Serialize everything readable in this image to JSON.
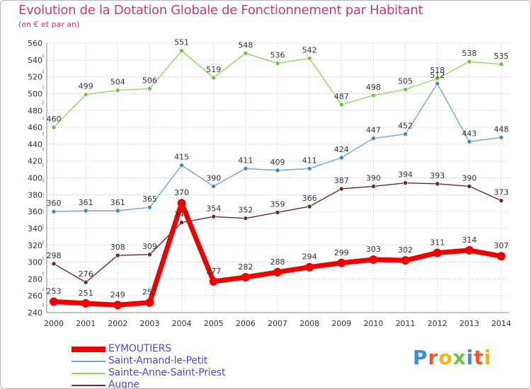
{
  "title": "Evolution de la Dotation Globale de Fonctionnement par Habitant",
  "subtitle": "(en € et par an)",
  "logo_text": "Proxiti",
  "colors": {
    "title": "#cc3a6e",
    "legend_text": "#4c4cc8",
    "grid": "#d8d8d8",
    "axis_text": "#333333"
  },
  "chart_data": {
    "type": "line",
    "title": "Evolution de la Dotation Globale de Fonctionnement par Habitant",
    "subtitle": "(en € et par an)",
    "xlabel": "",
    "ylabel": "",
    "x": [
      "2000",
      "2001",
      "2002",
      "2003",
      "2004",
      "2005",
      "2006",
      "2007",
      "2008",
      "2009",
      "2010",
      "2011",
      "2012",
      "2013",
      "2014"
    ],
    "ylim": [
      240,
      560
    ],
    "yticks": [
      240,
      260,
      280,
      300,
      320,
      340,
      360,
      380,
      400,
      420,
      440,
      460,
      480,
      500,
      520,
      540,
      560
    ],
    "grid": true,
    "legend_position": "bottom-left",
    "series": [
      {
        "name": "EYMOUTIERS",
        "color": "#ee0000",
        "marker": "#ee0000",
        "width": 7,
        "radius": 6,
        "values": [
          253,
          251,
          249,
          252,
          370,
          277,
          282,
          288,
          294,
          299,
          303,
          302,
          311,
          314,
          307
        ]
      },
      {
        "name": "Saint-Amand-le-Petit",
        "color": "#6ea6d6",
        "marker": "#3f87c9",
        "width": 1.4,
        "radius": 3,
        "values": [
          360,
          361,
          361,
          365,
          415,
          390,
          411,
          409,
          411,
          424,
          447,
          452,
          512,
          443,
          448
        ]
      },
      {
        "name": "Sainte-Anne-Saint-Priest",
        "color": "#8fd46c",
        "marker": "#72c43f",
        "width": 1.4,
        "radius": 3,
        "values": [
          460,
          499,
          504,
          506,
          551,
          519,
          548,
          536,
          542,
          487,
          498,
          505,
          518,
          538,
          535
        ]
      },
      {
        "name": "Augne",
        "color": "#6b2a2a",
        "marker": "#6b2a2a",
        "width": 1.4,
        "radius": 3,
        "values": [
          298,
          276,
          308,
          309,
          347,
          354,
          352,
          359,
          366,
          387,
          390,
          394,
          393,
          390,
          373
        ]
      }
    ]
  }
}
